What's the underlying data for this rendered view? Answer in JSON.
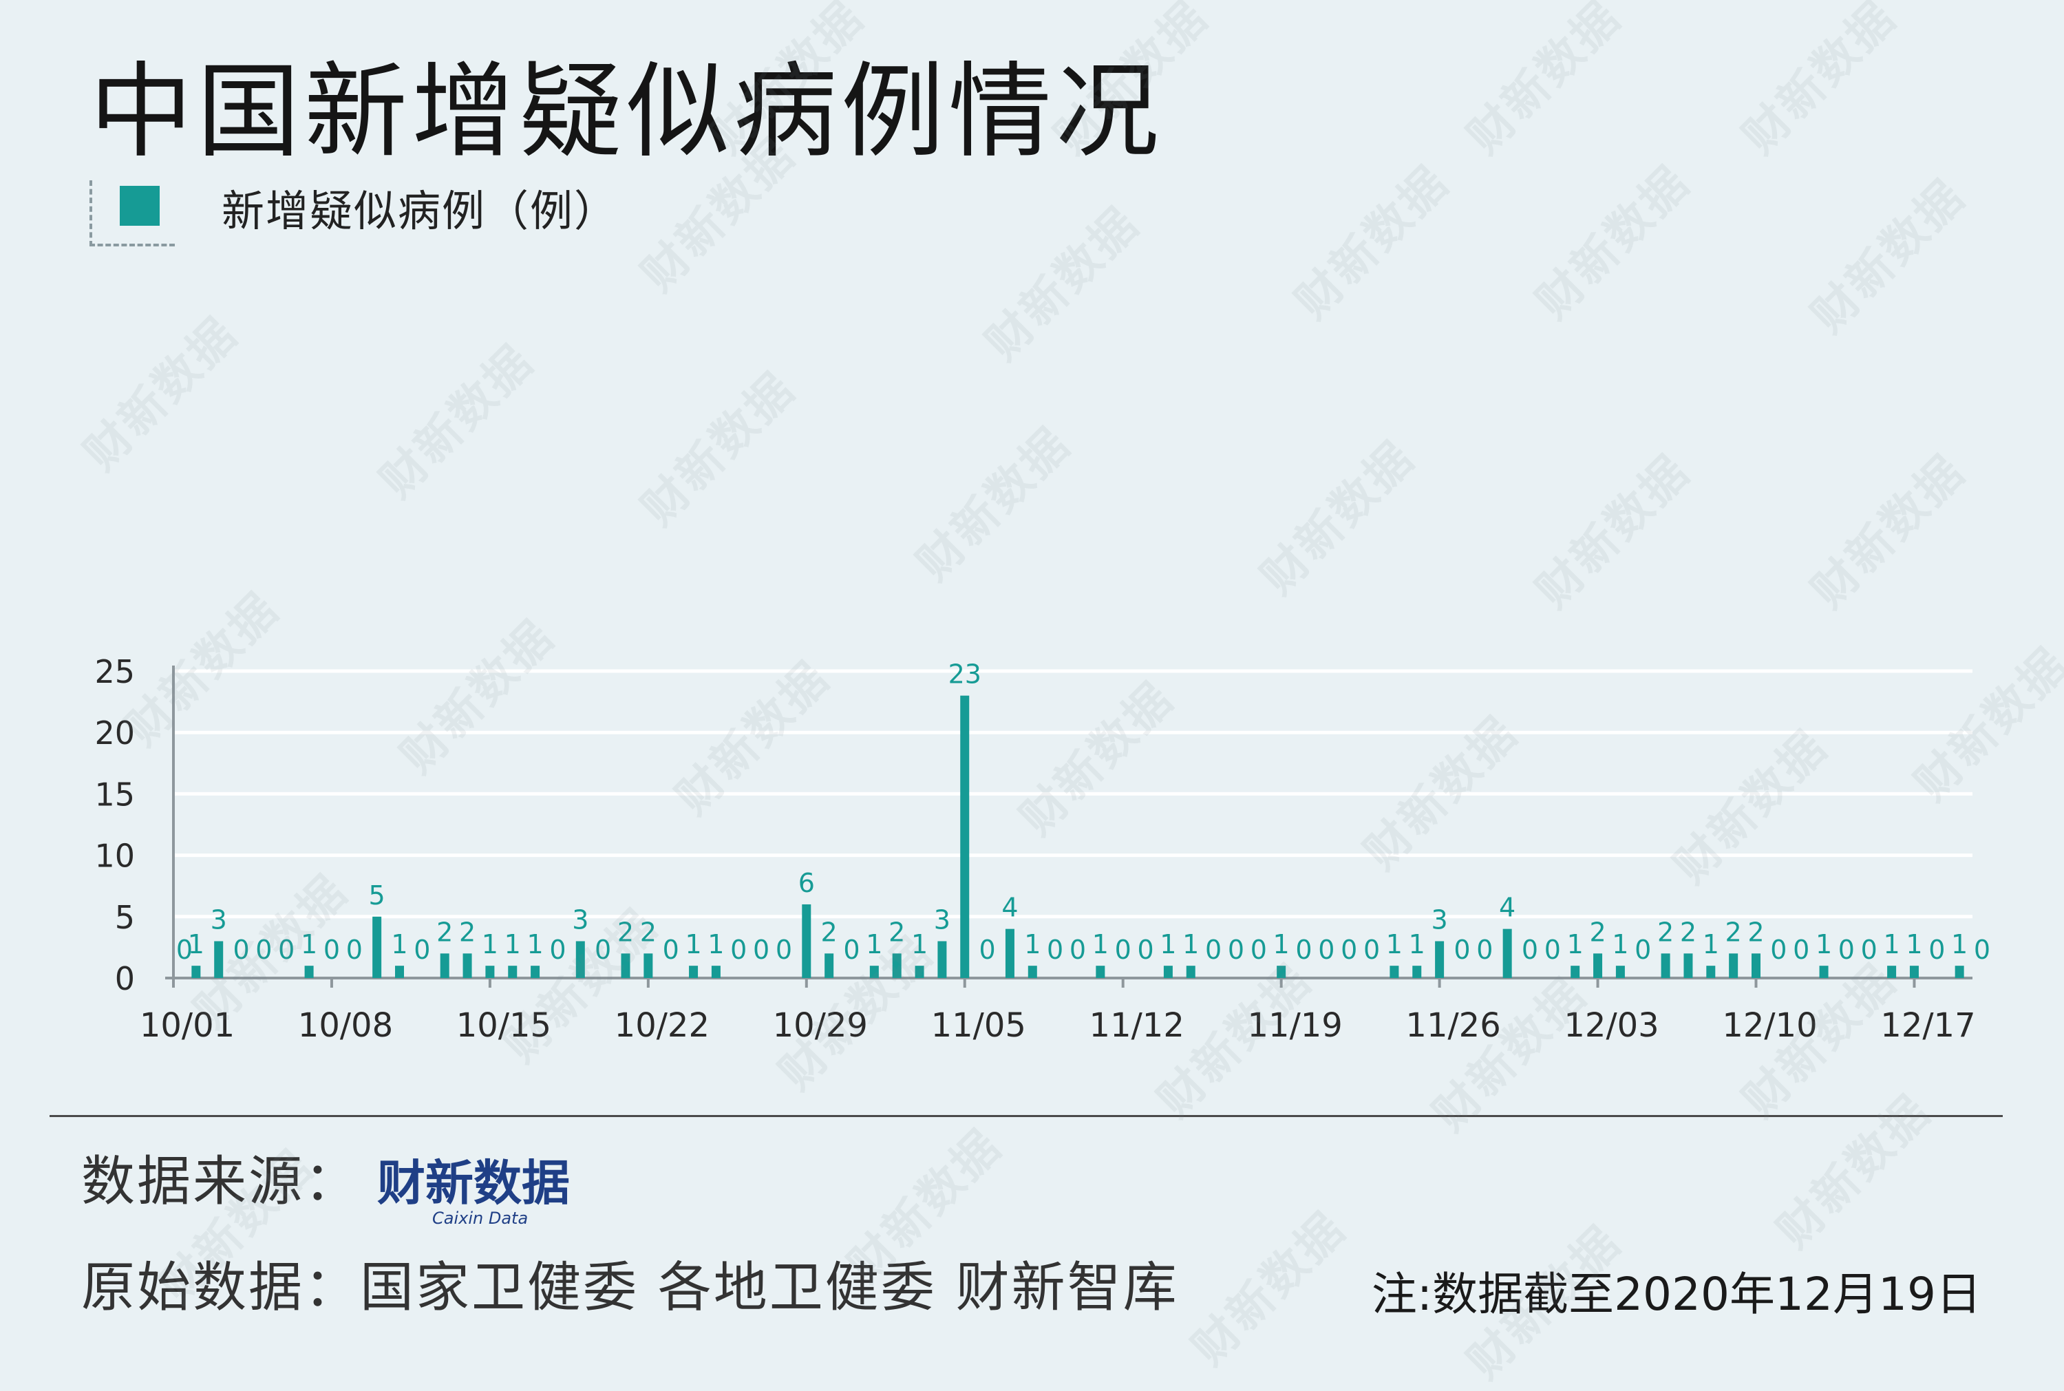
{
  "title": "中国新增疑似病例情况",
  "legend": {
    "label": "新增疑似病例（例）"
  },
  "colors": {
    "bar": "#169b95",
    "label": "#169b95",
    "grid": "#ffffff",
    "axis": "#8e979c",
    "text": "#222222"
  },
  "chart_data": {
    "type": "bar",
    "series": [
      {
        "name": "新增疑似病例（例）",
        "values": [
          0,
          1,
          3,
          0,
          0,
          0,
          1,
          0,
          0,
          5,
          1,
          0,
          2,
          2,
          1,
          1,
          1,
          0,
          3,
          0,
          2,
          2,
          0,
          1,
          1,
          0,
          0,
          0,
          6,
          2,
          0,
          1,
          2,
          1,
          3,
          23,
          0,
          4,
          1,
          0,
          0,
          1,
          0,
          0,
          1,
          1,
          0,
          0,
          0,
          1,
          0,
          0,
          0,
          0,
          1,
          1,
          3,
          0,
          0,
          4,
          0,
          0,
          1,
          2,
          1,
          0,
          2,
          2,
          1,
          2,
          2,
          0,
          0,
          1,
          0,
          0,
          1,
          1,
          0,
          1,
          0
        ]
      }
    ],
    "x_ticks": [
      "10/01",
      "10/08",
      "10/15",
      "10/22",
      "10/29",
      "11/05",
      "11/12",
      "11/19",
      "11/26",
      "12/03",
      "12/10",
      "12/17"
    ],
    "y_ticks": [
      "0",
      "5",
      "10",
      "15",
      "20",
      "25"
    ],
    "ylim": [
      0,
      25
    ],
    "grid": true
  },
  "footer": {
    "source_label": "数据来源：",
    "brand_cn": "财新数据",
    "brand_en": "Caixin Data",
    "raw_label": "原始数据：国家卫健委 各地卫健委 财新智库",
    "note": "注:数据截至2020年12月19日"
  },
  "watermark": "财新数据"
}
